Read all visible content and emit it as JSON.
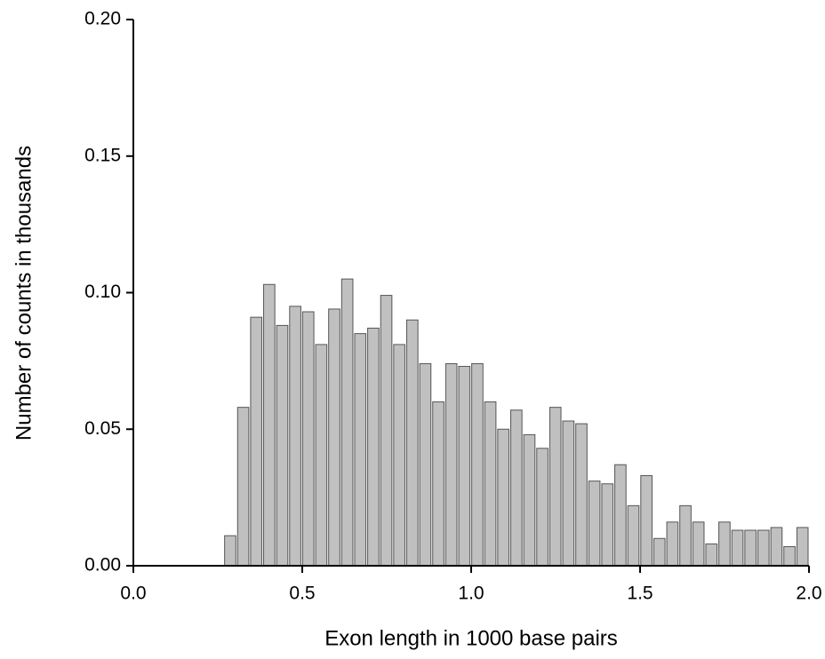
{
  "chart_data": {
    "type": "histogram",
    "xlabel": "Exon length in 1000 base pairs",
    "ylabel": "Number of counts in thousands",
    "bins": [
      0.2675,
      0.306,
      0.3445,
      0.383,
      0.4215,
      0.46,
      0.4985,
      0.537,
      0.5755,
      0.614,
      0.6525,
      0.691,
      0.7295,
      0.768,
      0.8065,
      0.845,
      0.8835,
      0.922,
      0.9605,
      0.999,
      1.0375,
      1.076,
      1.1145,
      1.153,
      1.1915,
      1.23,
      1.2685,
      1.307,
      1.3455,
      1.384,
      1.4225,
      1.461,
      1.4995,
      1.538,
      1.5765,
      1.615,
      1.6535,
      1.692,
      1.7305,
      1.769,
      1.8075,
      1.846,
      1.8845,
      1.923,
      1.9615,
      2.0
    ],
    "values": [
      0.011,
      0.058,
      0.091,
      0.103,
      0.088,
      0.095,
      0.093,
      0.081,
      0.094,
      0.105,
      0.085,
      0.087,
      0.099,
      0.081,
      0.09,
      0.074,
      0.06,
      0.074,
      0.073,
      0.074,
      0.06,
      0.05,
      0.057,
      0.048,
      0.043,
      0.058,
      0.053,
      0.052,
      0.031,
      0.03,
      0.037,
      0.022,
      0.033,
      0.01,
      0.016,
      0.022,
      0.016,
      0.008,
      0.016,
      0.013,
      0.013,
      0.013,
      0.014,
      0.007,
      0.014
    ],
    "color": "#c0c0c0",
    "xlim": [
      0,
      2.0
    ],
    "ylim": [
      0,
      0.2
    ],
    "xticks": [
      {
        "value": 0,
        "label": "0.0"
      },
      0.5,
      {
        "value": 1.0,
        "label": "1.0"
      },
      1.5,
      {
        "value": 2.0,
        "label": "2.0"
      }
    ],
    "yticks": [
      {
        "value": 0,
        "label": "0.00"
      },
      0.05,
      {
        "value": 0.1,
        "label": "0.10"
      },
      0.15,
      {
        "value": 0.2,
        "label": "0.20"
      }
    ]
  }
}
